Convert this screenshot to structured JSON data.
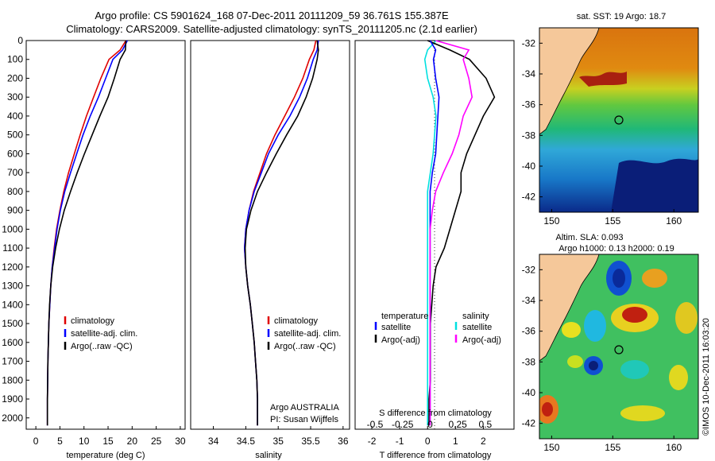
{
  "title_line1": "Argo profile: CS 5901624_168 07-Dec-2011 20111209_59 36.761S 155.387E",
  "title_line2": "Climatology: CARS2009. Satellite-adjusted climatology: synTS_20111205.nc (2.1d earlier)",
  "yticks": [
    "0",
    "100",
    "200",
    "300",
    "400",
    "500",
    "600",
    "700",
    "800",
    "900",
    "1000",
    "1100",
    "1200",
    "1300",
    "1400",
    "1500",
    "1600",
    "1700",
    "1800",
    "1900",
    "2000"
  ],
  "legend": {
    "climatology": "climatology",
    "satellite": "satellite-adj. clim.",
    "argo": "Argo(..raw -QC)",
    "temperature_head": "temperature",
    "salinity_head": "salinity",
    "sat_short": "satellite",
    "argo_adj": "Argo(-adj)"
  },
  "argo_credit": {
    "line1": "Argo AUSTRALIA",
    "line2": "PI: Susan Wijffels"
  },
  "diff_panel": {
    "s_label": "S difference from climatology",
    "t_label": "T difference from climatology",
    "s_ticks": [
      "-0.5",
      "-0.25",
      "0",
      "0.25",
      "0.5"
    ],
    "t_ticks": [
      "-2",
      "-1",
      "0",
      "1",
      "2"
    ]
  },
  "map_top": {
    "title": "sat. SST: 19 Argo: 18.7",
    "lat_ticks": [
      "-32",
      "-34",
      "-36",
      "-38",
      "-40",
      "-42"
    ],
    "lon_ticks": [
      "150",
      "155",
      "160"
    ]
  },
  "map_bottom": {
    "title1": "Altim. SLA: 0.093",
    "title2": "Argo h1000: 0.13 h2000: 0.19",
    "lat_ticks": [
      "-32",
      "-34",
      "-36",
      "-38",
      "-40",
      "-42"
    ],
    "lon_ticks": [
      "150",
      "155",
      "160"
    ]
  },
  "credit": "©IMOS 10-Dec-2011 16:03:20",
  "colors": {
    "climatology": "#e00000",
    "satellite": "#0000ff",
    "argo": "#000000",
    "temp_sat": "#00e0e0",
    "sal_argo": "#ff00ff",
    "land": "#f5c89a"
  },
  "chart_data": [
    {
      "type": "line",
      "title": "",
      "xlabel": "temperature (deg C)",
      "ylabel": "",
      "xticks": [
        "0",
        "5",
        "10",
        "15",
        "20",
        "25",
        "30"
      ],
      "xlim": [
        -2,
        31
      ],
      "ylim": [
        2060,
        0
      ],
      "series": [
        {
          "name": "climatology",
          "x": [
            18.7,
            17.5,
            15.2,
            13.5,
            12.0,
            10.5,
            9.2,
            8.0,
            6.8,
            5.8,
            5.0,
            4.3,
            3.8,
            3.4,
            3.1,
            2.9,
            2.7,
            2.6,
            2.5,
            2.45,
            2.4,
            2.4
          ],
          "depth": [
            0,
            50,
            100,
            200,
            300,
            400,
            500,
            600,
            700,
            800,
            900,
            1000,
            1100,
            1200,
            1300,
            1400,
            1500,
            1600,
            1700,
            1800,
            1900,
            2040
          ]
        },
        {
          "name": "satellite-adj. clim.",
          "x": [
            19.0,
            18.0,
            16.0,
            14.5,
            13.0,
            11.3,
            9.8,
            8.5,
            7.2,
            6.0,
            5.1,
            4.4,
            3.9,
            3.4,
            3.1,
            2.9,
            2.7,
            2.6,
            2.5,
            2.45,
            2.4,
            2.4
          ],
          "depth": [
            0,
            50,
            100,
            200,
            300,
            400,
            500,
            600,
            700,
            800,
            900,
            1000,
            1100,
            1200,
            1300,
            1400,
            1500,
            1600,
            1700,
            1800,
            1900,
            2040
          ]
        },
        {
          "name": "Argo(..raw -QC)",
          "x": [
            18.7,
            18.6,
            17.5,
            16.3,
            15.0,
            13.3,
            11.7,
            10.1,
            8.6,
            7.2,
            5.9,
            4.9,
            4.1,
            3.5,
            3.1,
            2.85,
            2.7,
            2.6,
            2.5,
            2.45,
            2.4,
            2.4
          ],
          "depth": [
            0,
            50,
            100,
            200,
            300,
            400,
            500,
            600,
            700,
            800,
            900,
            1000,
            1100,
            1200,
            1300,
            1400,
            1500,
            1600,
            1700,
            1800,
            1900,
            2040
          ]
        }
      ]
    },
    {
      "type": "line",
      "title": "",
      "xlabel": "salinity",
      "ylabel": "",
      "xticks": [
        "34",
        "34.5",
        "35",
        "35.5",
        "36"
      ],
      "xlim": [
        33.65,
        36.1
      ],
      "ylim": [
        2060,
        0
      ],
      "series": [
        {
          "name": "climatology",
          "x": [
            35.58,
            35.55,
            35.48,
            35.38,
            35.25,
            35.1,
            34.95,
            34.82,
            34.72,
            34.62,
            34.55,
            34.5,
            34.48,
            34.5,
            34.53,
            34.57,
            34.6,
            34.63,
            34.65,
            34.67,
            34.68,
            34.68
          ],
          "depth": [
            0,
            50,
            100,
            200,
            300,
            400,
            500,
            600,
            700,
            800,
            900,
            1000,
            1100,
            1200,
            1300,
            1400,
            1500,
            1600,
            1700,
            1800,
            1900,
            2040
          ]
        },
        {
          "name": "satellite-adj. clim.",
          "x": [
            35.62,
            35.6,
            35.54,
            35.45,
            35.33,
            35.18,
            35.0,
            34.85,
            34.74,
            34.63,
            34.55,
            34.5,
            34.48,
            34.5,
            34.53,
            34.57,
            34.6,
            34.63,
            34.65,
            34.67,
            34.68,
            34.68
          ],
          "depth": [
            0,
            50,
            100,
            200,
            300,
            400,
            500,
            600,
            700,
            800,
            900,
            1000,
            1100,
            1200,
            1300,
            1400,
            1500,
            1600,
            1700,
            1800,
            1900,
            2040
          ]
        },
        {
          "name": "Argo(..raw -QC)",
          "x": [
            35.6,
            35.62,
            35.6,
            35.53,
            35.43,
            35.3,
            35.13,
            34.97,
            34.82,
            34.68,
            34.58,
            34.51,
            34.49,
            34.5,
            34.53,
            34.57,
            34.6,
            34.63,
            34.65,
            34.67,
            34.68,
            34.68
          ],
          "depth": [
            0,
            50,
            100,
            200,
            300,
            400,
            500,
            600,
            700,
            800,
            900,
            1000,
            1100,
            1200,
            1300,
            1400,
            1500,
            1600,
            1700,
            1800,
            1900,
            2040
          ]
        }
      ]
    },
    {
      "type": "line",
      "title": "",
      "xlabel": "T difference from climatology",
      "ylabel": "",
      "xticks": [
        "-2",
        "-1",
        "0",
        "1",
        "2"
      ],
      "xlim": [
        -2.6,
        3.1
      ],
      "ylim": [
        2060,
        0
      ],
      "series": [
        {
          "name": "temperature satellite",
          "x": [
            0.3,
            0.0,
            -0.1,
            0.0,
            0.2,
            0.3,
            0.25,
            0.2,
            0.1,
            0.0,
            0.0,
            0.0,
            0.0,
            0.0,
            0.0,
            0.0,
            0.0,
            0.0,
            0.0,
            0.0,
            0.0,
            0.0
          ],
          "depth": [
            0,
            50,
            100,
            200,
            300,
            400,
            500,
            600,
            700,
            800,
            900,
            1000,
            1100,
            1200,
            1300,
            1400,
            1500,
            1600,
            1700,
            1800,
            1900,
            2040
          ]
        },
        {
          "name": "temperature Argo(-adj)",
          "x": [
            0.0,
            0.8,
            1.5,
            2.1,
            2.4,
            2.0,
            1.7,
            1.4,
            1.2,
            1.2,
            1.0,
            0.8,
            0.6,
            0.3,
            0.2,
            0.15,
            0.1,
            0.1,
            0.1,
            0.1,
            0.05,
            0.05
          ],
          "depth": [
            0,
            50,
            100,
            200,
            300,
            400,
            500,
            600,
            700,
            800,
            900,
            1000,
            1100,
            1200,
            1300,
            1400,
            1500,
            1600,
            1700,
            1800,
            1900,
            2040
          ]
        },
        {
          "name": "salinity satellite",
          "x": [
            0.0,
            0.05,
            0.03,
            0.05,
            0.08,
            0.07,
            0.06,
            0.05,
            0.02,
            0.0,
            0.0,
            0.0,
            0.0,
            0.0,
            0.0,
            0.0,
            0.0,
            0.0,
            0.0,
            0.0,
            0.0,
            0.0
          ],
          "depth": [
            0,
            50,
            100,
            200,
            300,
            400,
            500,
            600,
            700,
            800,
            900,
            1000,
            1100,
            1200,
            1300,
            1400,
            1500,
            1600,
            1700,
            1800,
            1900,
            2040
          ]
        },
        {
          "name": "salinity Argo(-adj)",
          "x": [
            0.05,
            0.35,
            0.3,
            0.35,
            0.38,
            0.3,
            0.26,
            0.2,
            0.12,
            0.05,
            0.02,
            0.0,
            0.0,
            0.0,
            0.0,
            0.0,
            0.0,
            0.0,
            0.0,
            0.0,
            0.0,
            0.0
          ],
          "depth": [
            0,
            50,
            100,
            200,
            300,
            400,
            500,
            600,
            700,
            800,
            900,
            1000,
            1100,
            1200,
            1300,
            1400,
            1500,
            1600,
            1700,
            1800,
            1900,
            2040
          ]
        }
      ]
    }
  ]
}
